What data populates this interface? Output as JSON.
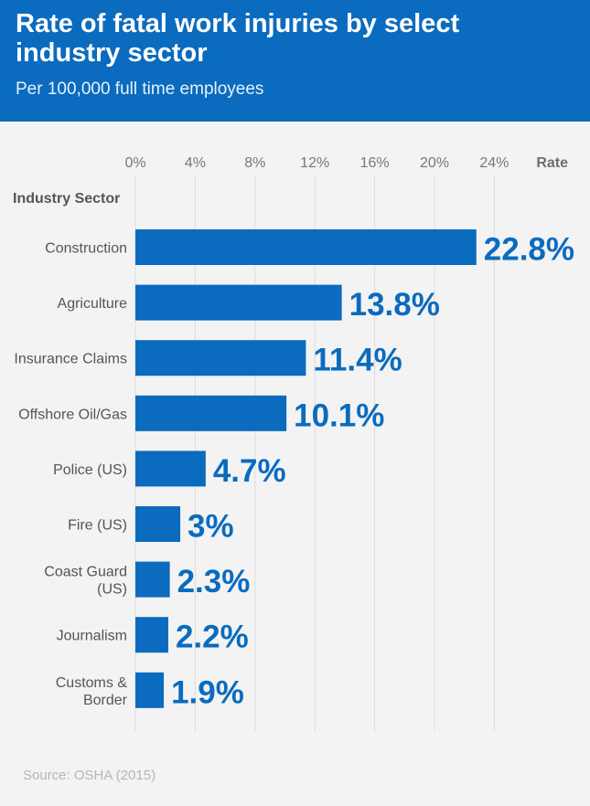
{
  "header": {
    "title": "Rate of fatal work injuries by select industry sector",
    "subtitle": "Per 100,000 full time employees"
  },
  "source": "Source: OSHA (2015)",
  "colors": {
    "header_bg": "#0a6bbf",
    "bar": "#0a6bbf",
    "value_label": "#0a6bbf",
    "background": "#f3f3f3",
    "gridline": "#dcdcdc"
  },
  "chart_data": {
    "type": "bar",
    "orientation": "horizontal",
    "ylabel": "Industry Sector",
    "xlabel": "Rate",
    "xlim": [
      0,
      24
    ],
    "xticks": [
      0,
      4,
      8,
      12,
      16,
      20,
      24
    ],
    "xtick_labels": [
      "0%",
      "4%",
      "8%",
      "12%",
      "16%",
      "20%",
      "24%"
    ],
    "grid": "vertical",
    "categories": [
      [
        "Construction"
      ],
      [
        "Agriculture"
      ],
      [
        "Insurance Claims"
      ],
      [
        "Offshore Oil/Gas"
      ],
      [
        "Police (US)"
      ],
      [
        "Fire (US)"
      ],
      [
        "Coast Guard",
        "(US)"
      ],
      [
        "Journalism"
      ],
      [
        "Customs &",
        "Border"
      ]
    ],
    "values": [
      22.8,
      13.8,
      11.4,
      10.1,
      4.7,
      3,
      2.3,
      2.2,
      1.9
    ],
    "value_labels": [
      "22.8%",
      "13.8%",
      "11.4%",
      "10.1%",
      "4.7%",
      "3%",
      "2.3%",
      "2.2%",
      "1.9%"
    ]
  }
}
